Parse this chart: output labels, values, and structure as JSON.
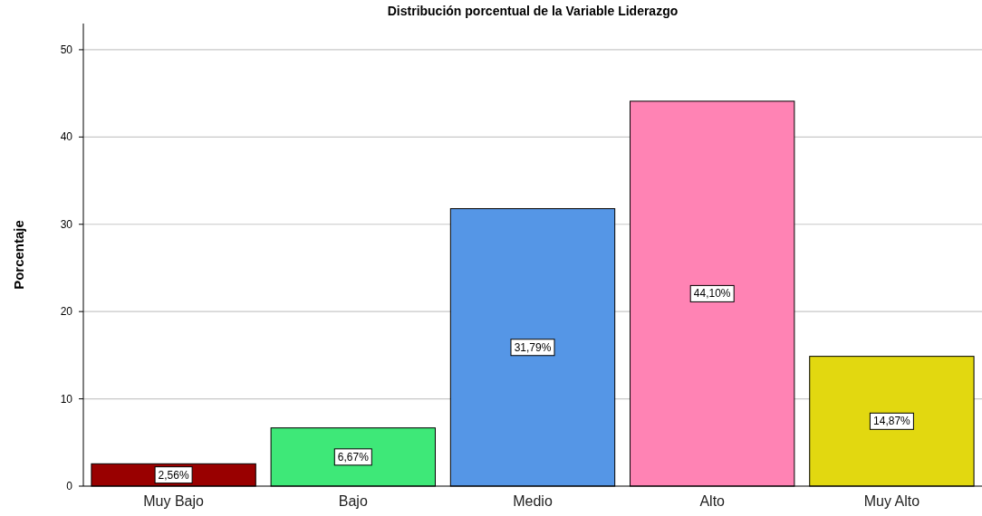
{
  "chart_data": {
    "type": "bar",
    "title": "Distribución porcentual de la Variable Liderazgo",
    "ylabel": "Porcentaje",
    "categories": [
      "Muy Bajo",
      "Bajo",
      "Medio",
      "Alto",
      "Muy Alto"
    ],
    "values": [
      2.56,
      6.67,
      31.79,
      44.1,
      14.87
    ],
    "colors": [
      "#990000",
      "#3ee878",
      "#5596e6",
      "#ff83b4",
      "#e2d810"
    ],
    "value_labels": [
      "2,56%",
      "6,67%",
      "31,79%",
      "44,10%",
      "14,87%"
    ],
    "ylim": [
      0,
      53
    ],
    "yticks": [
      0,
      10,
      20,
      30,
      40,
      50
    ],
    "grid": "y"
  }
}
